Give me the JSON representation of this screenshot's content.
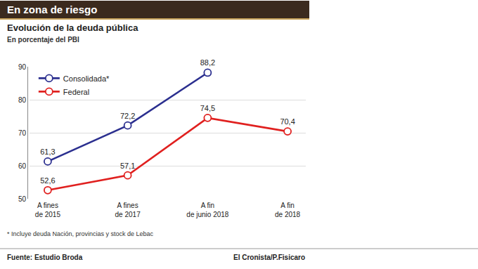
{
  "chart_data": {
    "type": "line",
    "title": "En zona de riesgo",
    "subtitle": "Evolución de la deuda pública",
    "ylabel": "En porcentaje del PBI",
    "categories": [
      "A fines de 2015",
      "A fines de 2017",
      "A fin de junio 2018",
      "A fin de 2018"
    ],
    "series": [
      {
        "name": "Consolidada*",
        "color": "#2b2f8f",
        "values": [
          61.3,
          72.2,
          88.2,
          null
        ],
        "value_labels": [
          "61,3",
          "72,2",
          "88,2",
          null
        ]
      },
      {
        "name": "Federal",
        "color": "#e0201f",
        "values": [
          52.6,
          57.1,
          74.5,
          70.4
        ],
        "value_labels": [
          "52,6",
          "57,1",
          "74,5",
          "70,4"
        ]
      }
    ],
    "ylim": [
      50,
      90
    ],
    "yticks": [
      50,
      60,
      70,
      80,
      90
    ],
    "grid": true,
    "legend": "upper left",
    "data_labels": true,
    "marker": "circle",
    "line_style": "solid",
    "footnote": "* Incluye deuda Nación, provincias y stock de Lebac",
    "source": "Fuente: Estudio Broda",
    "credit": "El Cronista/P.Fisicaro"
  }
}
